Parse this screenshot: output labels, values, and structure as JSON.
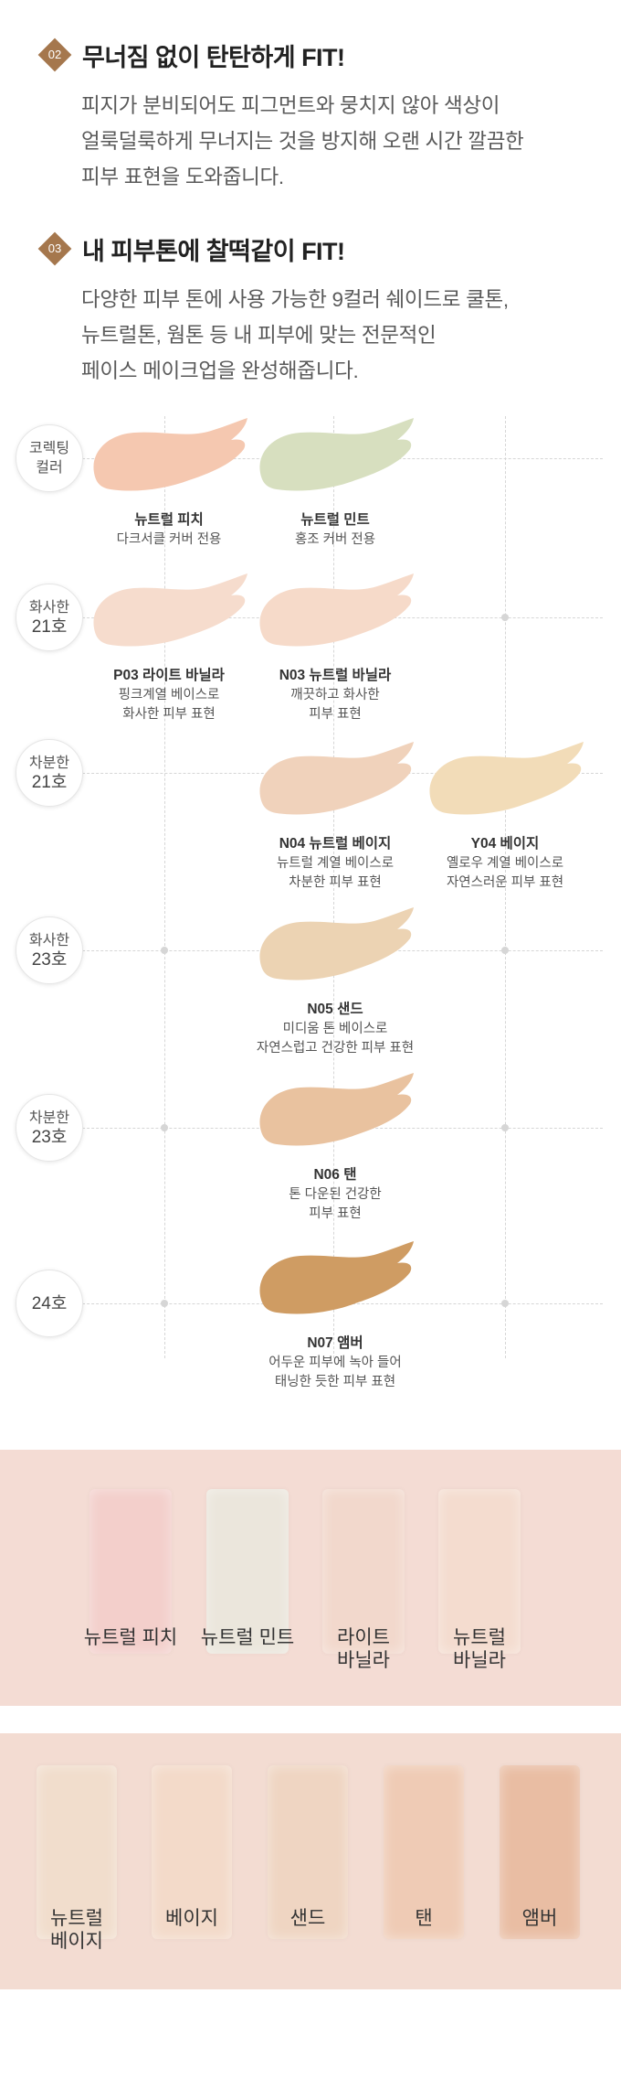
{
  "features": [
    {
      "number": "02",
      "title": "무너짐 없이 탄탄하게 FIT!",
      "lines": [
        "피지가 분비되어도 피그먼트와 뭉치지 않아 색상이",
        "얼룩덜룩하게 무너지는 것을 방지해 오랜 시간 깔끔한",
        "피부 표현을 도와줍니다."
      ]
    },
    {
      "number": "03",
      "title": "내 피부톤에 찰떡같이 FIT!",
      "lines": [
        "다양한 피부 톤에 사용 가능한 9컬러 쉐이드로 쿨톤,",
        "뉴트럴톤, 웜톤 등 내 피부에 맞는 전문적인",
        "페이스 메이크업을 완성해줍니다."
      ]
    }
  ],
  "rows": [
    {
      "label": [
        "코렉팅",
        "컬러"
      ]
    },
    {
      "label": [
        "화사한",
        "21호"
      ]
    },
    {
      "label": [
        "차분한",
        "21호"
      ]
    },
    {
      "label": [
        "화사한",
        "23호"
      ]
    },
    {
      "label": [
        "차분한",
        "23호"
      ]
    },
    {
      "label": [
        "24호"
      ]
    }
  ],
  "shades": [
    {
      "name": "뉴트럴 피치",
      "desc": [
        "다크서클 커버 전용"
      ],
      "color": "#f5c8b0"
    },
    {
      "name": "뉴트럴 민트",
      "desc": [
        "홍조 커버 전용"
      ],
      "color": "#d7dfbf"
    },
    {
      "name": "P03 라이트 바닐라",
      "desc": [
        "핑크계열 베이스로",
        "화사한 피부 표현"
      ],
      "color": "#f6dccd"
    },
    {
      "name": "N03 뉴트럴 바닐라",
      "desc": [
        "깨끗하고 화사한",
        "피부 표현"
      ],
      "color": "#f6dac9"
    },
    {
      "name": "N04 뉴트럴 베이지",
      "desc": [
        "뉴트럴 계열 베이스로",
        "차분한 피부 표현"
      ],
      "color": "#f0d2bb"
    },
    {
      "name": "Y04 베이지",
      "desc": [
        "옐로우 계열 베이스로",
        "자연스러운 피부 표현"
      ],
      "color": "#f2dcb8"
    },
    {
      "name": "N05 샌드",
      "desc": [
        "미디움 톤 베이스로",
        "자연스럽고 건강한 피부 표현"
      ],
      "color": "#ecd3b3"
    },
    {
      "name": "N06 탠",
      "desc": [
        "톤 다운된 건강한",
        "피부 표현"
      ],
      "color": "#e9c29f"
    },
    {
      "name": "N07 앰버",
      "desc": [
        "어두운 피부에 녹아 들어",
        "태닝한 듯한 피부 표현"
      ],
      "color": "#cf9c63"
    }
  ],
  "texture_band_1": [
    {
      "label": [
        "뉴트럴 피치"
      ],
      "color": "#f3cfcb"
    },
    {
      "label": [
        "뉴트럴 민트"
      ],
      "color": "#ebe6dc"
    },
    {
      "label": [
        "라이트",
        "바닐라"
      ],
      "color": "#f2d8cc"
    },
    {
      "label": [
        "뉴트럴",
        "바닐라"
      ],
      "color": "#f4dccf"
    }
  ],
  "texture_band_2": [
    {
      "label": [
        "뉴트럴",
        "베이지"
      ],
      "color": "#f1ddcc"
    },
    {
      "label": [
        "베이지"
      ],
      "color": "#f3dac9"
    },
    {
      "label": [
        "샌드"
      ],
      "color": "#efd5c2"
    },
    {
      "label": [
        "탠"
      ],
      "color": "#efcbb5"
    },
    {
      "label": [
        "앰버"
      ],
      "color": "#e9bda3"
    }
  ],
  "colors": {
    "accent": "#a5774d",
    "band1_bg": "#f4dcd4",
    "band2_bg": "#f3dcd2"
  }
}
